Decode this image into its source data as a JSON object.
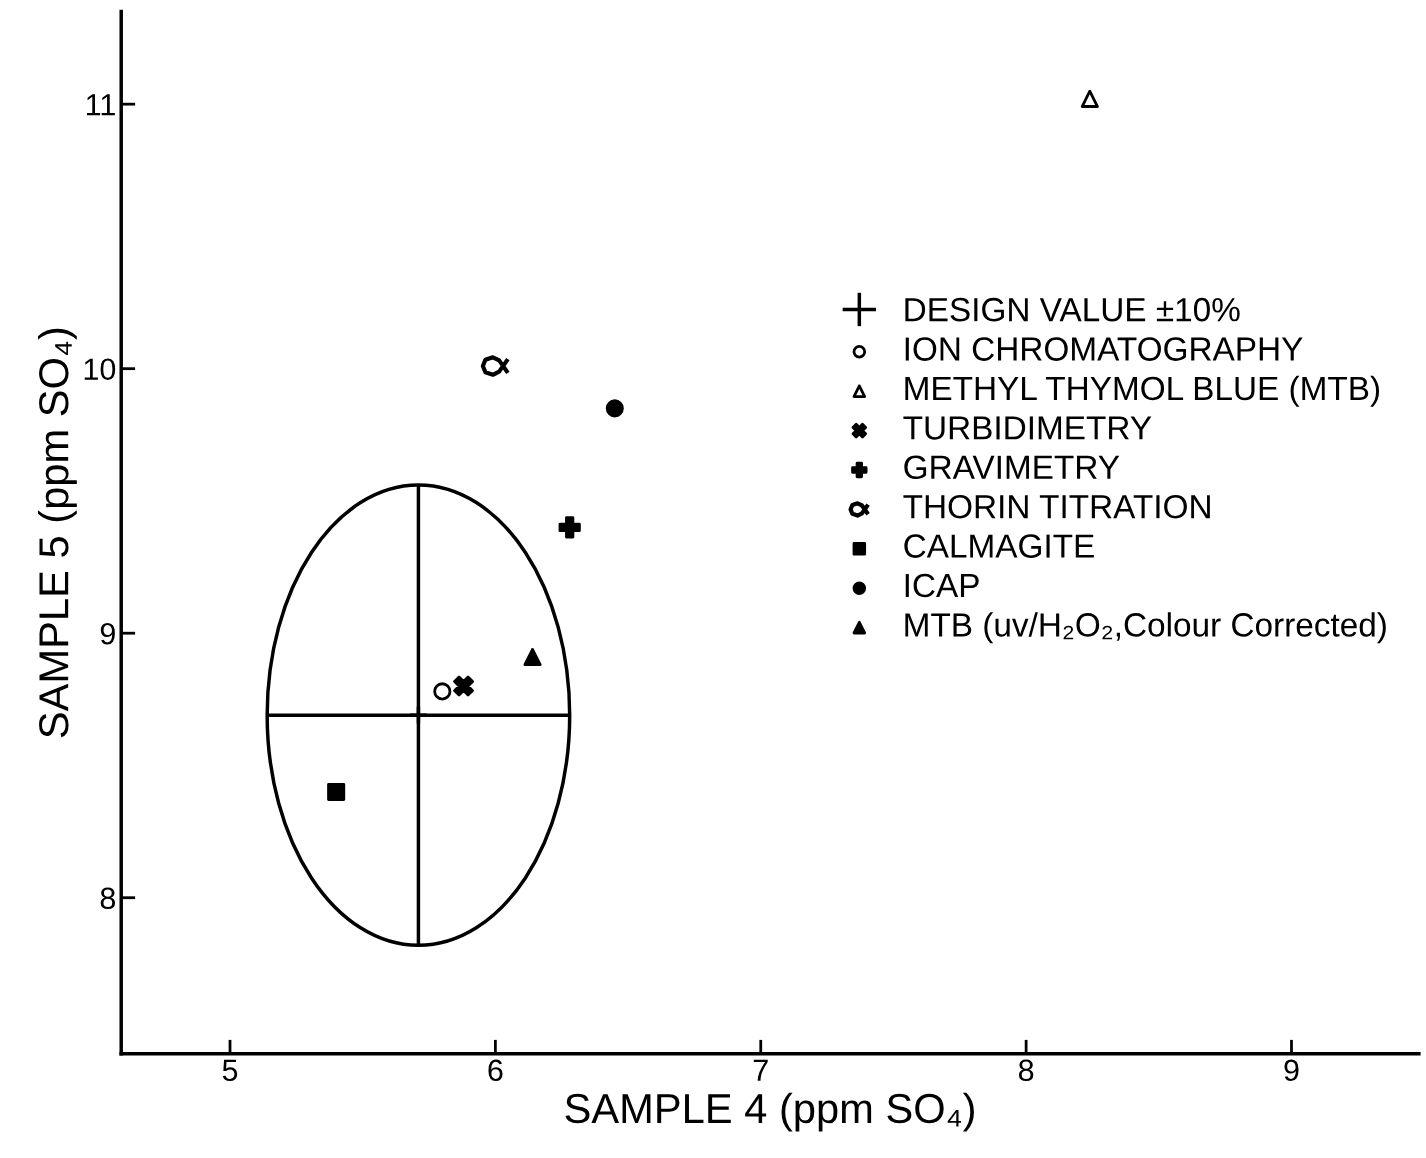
{
  "chart_data": {
    "type": "scatter",
    "xlabel": "SAMPLE 4 (ppm SO₄)",
    "ylabel": "SAMPLE 5 (ppm SO₄)",
    "xlim": [
      4.59,
      9.48
    ],
    "xticks": [
      5,
      6,
      7,
      8,
      9
    ],
    "ylim": [
      7.41,
      11.35
    ],
    "yticks": [
      8,
      9,
      10,
      11
    ],
    "grid": false,
    "legend": "right",
    "series": [
      {
        "name": "DESIGN VALUE ±10%",
        "color": "#000000",
        "marker": "cross",
        "x": [
          5.71
        ],
        "values": [
          8.69
        ],
        "xerrors": [
          0.57
        ],
        "errors": [
          0.87
        ]
      },
      {
        "name": "ION CHROMATOGRAPHY",
        "color": "#000000",
        "marker": "circle",
        "x": [
          5.8
        ],
        "values": [
          8.78
        ]
      },
      {
        "name": "METHYL THYMOL BLUE (MTB)",
        "color": "#000000",
        "marker": "triangle",
        "x": [
          8.24
        ],
        "values": [
          11.02
        ]
      },
      {
        "name": "TURBIDIMETRY",
        "color": "#000000",
        "marker": "cross",
        "x": [
          5.88
        ],
        "values": [
          8.8
        ]
      },
      {
        "name": "GRAVIMETRY",
        "color": "#000000",
        "marker": "cross",
        "x": [
          6.28
        ],
        "values": [
          9.4
        ]
      },
      {
        "name": "THORIN TITRATION",
        "color": "#000000",
        "x": [
          6.0
        ],
        "values": [
          10.01
        ]
      },
      {
        "name": "CALMAGITE",
        "color": "#000000",
        "marker": "square",
        "x": [
          5.4
        ],
        "values": [
          8.4
        ]
      },
      {
        "name": "ICAP",
        "color": "#000000",
        "marker": "circle",
        "x": [
          6.45
        ],
        "values": [
          9.85
        ]
      },
      {
        "name": "MTB (uv/H₂O₂,Colour Corrected)",
        "color": "#000000",
        "marker": "triangle",
        "x": [
          6.14
        ],
        "values": [
          8.91
        ]
      }
    ]
  }
}
